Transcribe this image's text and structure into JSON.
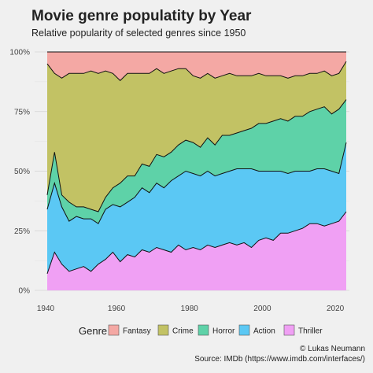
{
  "chart_data": {
    "type": "area",
    "stacked": true,
    "normalized": true,
    "title": "Movie genre populatity by Year",
    "subtitle": "Relative popularity of selected genres since 1950",
    "xlabel": "",
    "ylabel": "",
    "xlim": [
      1941,
      2023
    ],
    "ylim": [
      0,
      1
    ],
    "x_ticks": [
      1960,
      1980,
      2000,
      2020
    ],
    "y_ticks": [
      {
        "value": 0,
        "label": "0%"
      },
      {
        "value": 0.25,
        "label": "25%"
      },
      {
        "value": 0.5,
        "label": "50%"
      },
      {
        "value": 0.75,
        "label": "75%"
      },
      {
        "value": 1,
        "label": "100%"
      }
    ],
    "grid": true,
    "legend_title": "Genre",
    "legend_position": "bottom",
    "x": [
      1941,
      1943,
      1945,
      1947,
      1949,
      1951,
      1953,
      1955,
      1957,
      1959,
      1961,
      1963,
      1965,
      1967,
      1969,
      1971,
      1973,
      1975,
      1977,
      1979,
      1981,
      1983,
      1985,
      1987,
      1989,
      1991,
      1993,
      1995,
      1997,
      1999,
      2001,
      2003,
      2005,
      2007,
      2009,
      2011,
      2013,
      2015,
      2017,
      2019,
      2021,
      2023
    ],
    "series": [
      {
        "name": "Thriller",
        "color": "#f0a0f4",
        "values": [
          0.07,
          0.16,
          0.11,
          0.08,
          0.09,
          0.1,
          0.08,
          0.11,
          0.13,
          0.16,
          0.12,
          0.15,
          0.14,
          0.17,
          0.16,
          0.18,
          0.17,
          0.16,
          0.19,
          0.17,
          0.18,
          0.17,
          0.19,
          0.18,
          0.19,
          0.2,
          0.19,
          0.2,
          0.18,
          0.21,
          0.22,
          0.21,
          0.24,
          0.24,
          0.25,
          0.26,
          0.28,
          0.28,
          0.27,
          0.28,
          0.29,
          0.33
        ]
      },
      {
        "name": "Action",
        "color": "#5bc8f4",
        "values": [
          0.27,
          0.29,
          0.24,
          0.21,
          0.22,
          0.2,
          0.22,
          0.17,
          0.21,
          0.2,
          0.23,
          0.22,
          0.25,
          0.26,
          0.25,
          0.27,
          0.26,
          0.3,
          0.29,
          0.33,
          0.31,
          0.31,
          0.31,
          0.3,
          0.3,
          0.3,
          0.32,
          0.31,
          0.33,
          0.29,
          0.28,
          0.29,
          0.26,
          0.25,
          0.25,
          0.24,
          0.22,
          0.23,
          0.24,
          0.22,
          0.2,
          0.29
        ]
      },
      {
        "name": "Horror",
        "color": "#5ed2a8",
        "values": [
          0.06,
          0.13,
          0.05,
          0.08,
          0.04,
          0.05,
          0.04,
          0.05,
          0.05,
          0.07,
          0.1,
          0.11,
          0.09,
          0.1,
          0.11,
          0.12,
          0.13,
          0.12,
          0.13,
          0.13,
          0.13,
          0.12,
          0.14,
          0.13,
          0.16,
          0.15,
          0.15,
          0.16,
          0.17,
          0.2,
          0.2,
          0.21,
          0.22,
          0.22,
          0.23,
          0.23,
          0.25,
          0.25,
          0.26,
          0.24,
          0.27,
          0.18
        ]
      },
      {
        "name": "Crime",
        "color": "#c2c264",
        "values": [
          0.55,
          0.33,
          0.49,
          0.54,
          0.56,
          0.56,
          0.58,
          0.58,
          0.53,
          0.48,
          0.43,
          0.43,
          0.43,
          0.38,
          0.39,
          0.36,
          0.35,
          0.34,
          0.32,
          0.3,
          0.28,
          0.29,
          0.27,
          0.28,
          0.25,
          0.26,
          0.24,
          0.23,
          0.22,
          0.21,
          0.2,
          0.19,
          0.18,
          0.18,
          0.17,
          0.17,
          0.16,
          0.15,
          0.15,
          0.16,
          0.15,
          0.16
        ]
      },
      {
        "name": "Fantasy",
        "color": "#f4a8a4",
        "values": [
          0.05,
          0.09,
          0.11,
          0.09,
          0.09,
          0.09,
          0.08,
          0.09,
          0.08,
          0.09,
          0.12,
          0.09,
          0.09,
          0.09,
          0.09,
          0.07,
          0.09,
          0.08,
          0.07,
          0.07,
          0.1,
          0.11,
          0.09,
          0.11,
          0.1,
          0.09,
          0.1,
          0.1,
          0.1,
          0.09,
          0.1,
          0.1,
          0.1,
          0.11,
          0.1,
          0.1,
          0.09,
          0.09,
          0.08,
          0.1,
          0.09,
          0.04
        ]
      }
    ],
    "legend_order": [
      "Fantasy",
      "Crime",
      "Horror",
      "Action",
      "Thriller"
    ]
  },
  "caption": {
    "author": "© Lukas Neumann",
    "source": "Source: IMDb (https://www.imdb.com/interfaces/)"
  }
}
